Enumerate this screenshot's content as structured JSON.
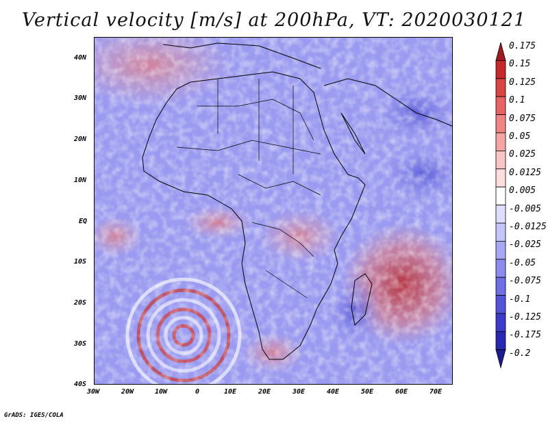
{
  "title": "Vertical velocity [m/s] at 200hPa, VT: 2020030121",
  "credit": "GrADS: IGES/COLA",
  "lat_labels": [
    "40N",
    "30N",
    "20N",
    "10N",
    "EQ",
    "10S",
    "20S",
    "30S",
    "40S"
  ],
  "lon_labels": [
    "30W",
    "20W",
    "10W",
    "0",
    "10E",
    "20E",
    "30E",
    "40E",
    "50E",
    "60E",
    "70E"
  ],
  "colorbar": {
    "labels": [
      "0.175",
      "0.15",
      "0.125",
      "0.1",
      "0.075",
      "0.05",
      "0.025",
      "0.0125",
      "0.005",
      "-0.005",
      "-0.0125",
      "-0.025",
      "-0.05",
      "-0.075",
      "-0.1",
      "-0.125",
      "-0.175",
      "-0.2"
    ],
    "colors": [
      "#a01a22",
      "#c42a2a",
      "#d84545",
      "#e86464",
      "#f08585",
      "#f4a5a5",
      "#f8c4c4",
      "#fcdede",
      "#ffffff",
      "#dedefc",
      "#c4c4f8",
      "#a8a8f2",
      "#8c8ced",
      "#6e6ee6",
      "#5454db",
      "#3c3cc8",
      "#2828b0",
      "#1c1c90"
    ]
  }
}
